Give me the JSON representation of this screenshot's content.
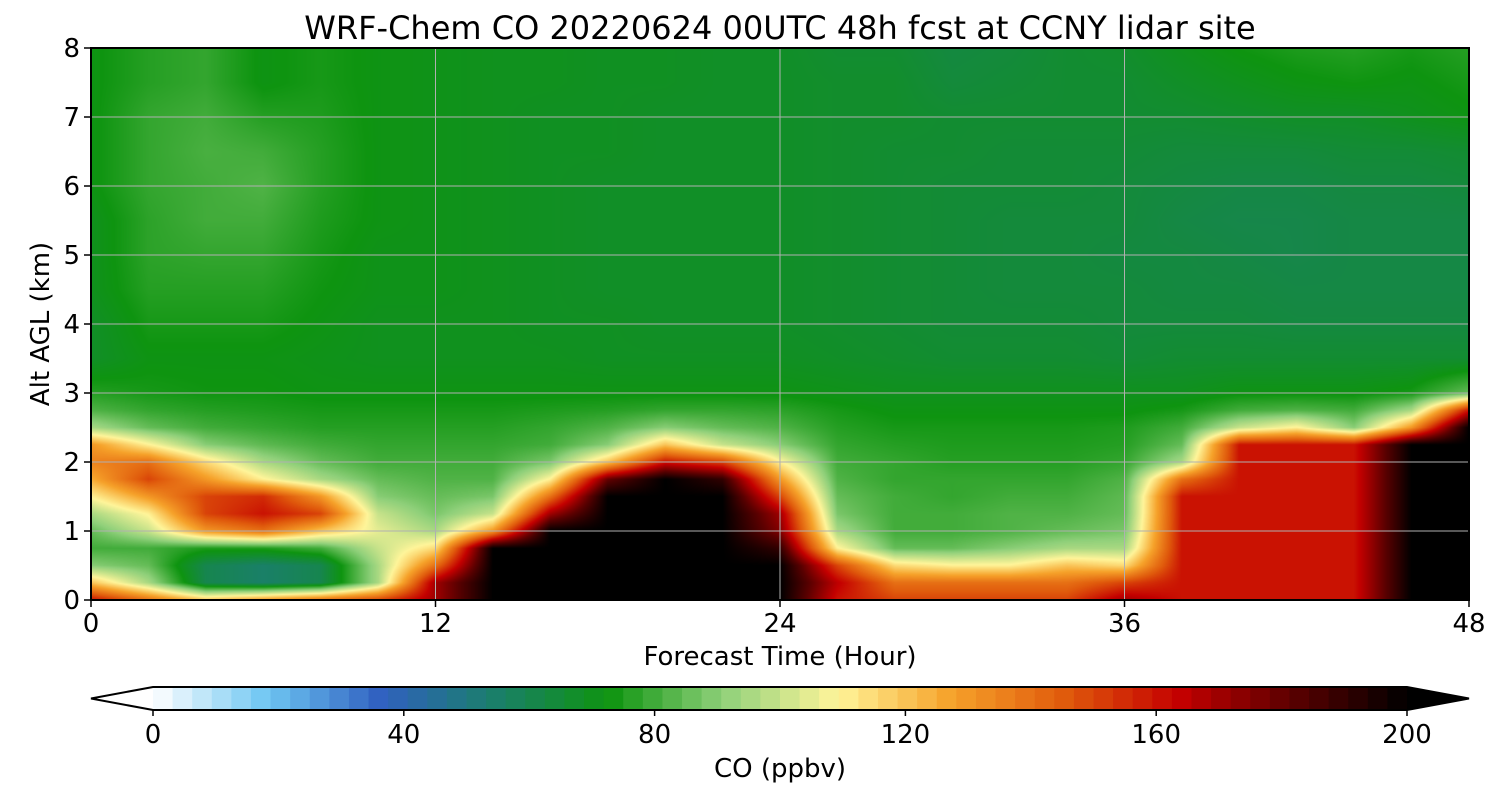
{
  "chart_data": {
    "type": "heatmap",
    "title": "WRF-Chem CO  20220624 00UTC 48h fcst at CCNY lidar site",
    "xlabel": "Forecast Time (Hour)",
    "ylabel": "Alt AGL (km)",
    "xlim": [
      0,
      48
    ],
    "ylim": [
      0,
      8
    ],
    "xticks": [
      0,
      12,
      24,
      36,
      48
    ],
    "yticks": [
      0,
      1,
      2,
      3,
      4,
      5,
      6,
      7,
      8
    ],
    "grid": true,
    "colorbar": {
      "label": "CO  (ppbv)",
      "min": 0,
      "max": 200,
      "ticks": [
        0,
        40,
        80,
        120,
        160,
        200
      ],
      "extend": "both",
      "colors": [
        "#ffffff",
        "#6ec6f2",
        "#3060c0",
        "#1a7f6a",
        "#0e9410",
        "#8fd07a",
        "#fff59a",
        "#f6a22a",
        "#e05a0c",
        "#c40000",
        "#5a0000",
        "#000000"
      ]
    },
    "times": [
      0,
      2,
      4,
      6,
      8,
      10,
      12,
      14,
      16,
      18,
      20,
      22,
      24,
      26,
      28,
      30,
      32,
      34,
      36,
      38,
      40,
      42,
      44,
      46,
      48
    ],
    "heights_km": [
      0,
      0.25,
      0.5,
      0.75,
      1,
      1.25,
      1.5,
      1.75,
      2,
      2.25,
      2.5,
      2.75,
      3,
      3.5,
      4,
      4.5,
      5,
      5.5,
      6,
      6.5,
      7,
      7.5,
      8
    ],
    "values_ppbv": [
      [
        160,
        140,
        120,
        130,
        140,
        150,
        170,
        200,
        200,
        200,
        200,
        200,
        200,
        160,
        150,
        150,
        150,
        150,
        170,
        160,
        160,
        160,
        160,
        200,
        200
      ],
      [
        120,
        95,
        60,
        55,
        60,
        95,
        170,
        200,
        200,
        200,
        200,
        200,
        200,
        165,
        140,
        140,
        140,
        140,
        150,
        160,
        160,
        160,
        160,
        200,
        200
      ],
      [
        90,
        85,
        60,
        55,
        60,
        95,
        140,
        200,
        200,
        200,
        200,
        200,
        200,
        150,
        115,
        110,
        110,
        120,
        115,
        160,
        160,
        160,
        160,
        200,
        200
      ],
      [
        80,
        80,
        75,
        75,
        80,
        100,
        115,
        200,
        200,
        200,
        200,
        200,
        190,
        110,
        85,
        85,
        90,
        95,
        95,
        160,
        160,
        160,
        160,
        200,
        200
      ],
      [
        85,
        100,
        130,
        140,
        120,
        105,
        95,
        130,
        200,
        200,
        200,
        200,
        175,
        95,
        80,
        80,
        82,
        85,
        88,
        160,
        160,
        160,
        160,
        200,
        200
      ],
      [
        95,
        110,
        150,
        160,
        150,
        100,
        88,
        100,
        170,
        200,
        200,
        200,
        170,
        88,
        80,
        80,
        82,
        82,
        85,
        160,
        160,
        160,
        160,
        200,
        200
      ],
      [
        110,
        130,
        150,
        155,
        130,
        90,
        85,
        88,
        140,
        200,
        200,
        200,
        150,
        85,
        80,
        78,
        80,
        80,
        84,
        160,
        160,
        160,
        160,
        200,
        200
      ],
      [
        125,
        150,
        130,
        110,
        95,
        85,
        82,
        82,
        110,
        180,
        200,
        190,
        130,
        82,
        78,
        78,
        78,
        78,
        82,
        140,
        160,
        160,
        160,
        200,
        200
      ],
      [
        135,
        140,
        115,
        95,
        85,
        80,
        80,
        80,
        88,
        120,
        160,
        150,
        110,
        80,
        78,
        76,
        76,
        76,
        78,
        95,
        160,
        160,
        160,
        200,
        200
      ],
      [
        130,
        110,
        90,
        84,
        80,
        78,
        78,
        78,
        80,
        90,
        120,
        100,
        90,
        78,
        76,
        75,
        75,
        75,
        76,
        85,
        160,
        160,
        160,
        200,
        200
      ],
      [
        95,
        85,
        80,
        78,
        76,
        76,
        76,
        76,
        78,
        82,
        90,
        85,
        82,
        76,
        74,
        74,
        74,
        74,
        75,
        80,
        100,
        110,
        90,
        130,
        200
      ],
      [
        82,
        78,
        76,
        75,
        74,
        74,
        74,
        74,
        75,
        76,
        78,
        78,
        77,
        74,
        72,
        72,
        72,
        72,
        72,
        74,
        80,
        82,
        80,
        95,
        160
      ],
      [
        76,
        74,
        73,
        73,
        72,
        72,
        72,
        72,
        72,
        72,
        72,
        72,
        72,
        71,
        70,
        70,
        70,
        70,
        70,
        70,
        72,
        72,
        72,
        74,
        85
      ],
      [
        68,
        72,
        72,
        72,
        71,
        70,
        70,
        70,
        70,
        69,
        69,
        69,
        69,
        68,
        67,
        66,
        66,
        66,
        65,
        66,
        66,
        66,
        66,
        66,
        66
      ],
      [
        68,
        74,
        74,
        74,
        72,
        70,
        70,
        70,
        69,
        69,
        68,
        68,
        68,
        67,
        66,
        65,
        65,
        65,
        64,
        64,
        64,
        63,
        63,
        63,
        63
      ],
      [
        70,
        76,
        76,
        76,
        73,
        71,
        71,
        70,
        69,
        68,
        68,
        68,
        68,
        67,
        66,
        65,
        64,
        64,
        64,
        63,
        63,
        62,
        62,
        62,
        62
      ],
      [
        70,
        77,
        78,
        78,
        74,
        71,
        71,
        70,
        69,
        68,
        68,
        68,
        68,
        67,
        66,
        65,
        64,
        64,
        63,
        63,
        62,
        61,
        62,
        62,
        62
      ],
      [
        70,
        77,
        80,
        80,
        75,
        72,
        71,
        70,
        69,
        68,
        68,
        68,
        68,
        67,
        66,
        65,
        64,
        64,
        64,
        62,
        61,
        61,
        62,
        62,
        62
      ],
      [
        72,
        78,
        80,
        82,
        76,
        72,
        71,
        70,
        69,
        68,
        68,
        68,
        68,
        67,
        66,
        65,
        65,
        65,
        64,
        63,
        62,
        62,
        63,
        63,
        64
      ],
      [
        72,
        78,
        81,
        80,
        76,
        72,
        71,
        70,
        69,
        69,
        68,
        68,
        68,
        67,
        66,
        66,
        65,
        65,
        65,
        64,
        64,
        64,
        65,
        65,
        66
      ],
      [
        72,
        78,
        80,
        76,
        75,
        72,
        71,
        70,
        69,
        69,
        68,
        68,
        68,
        67,
        67,
        66,
        66,
        66,
        66,
        66,
        67,
        68,
        68,
        70,
        72
      ],
      [
        72,
        76,
        78,
        72,
        74,
        72,
        71,
        70,
        70,
        69,
        69,
        68,
        68,
        67,
        67,
        64,
        65,
        66,
        66,
        68,
        70,
        72,
        73,
        72,
        74
      ],
      [
        72,
        76,
        78,
        72,
        74,
        72,
        71,
        70,
        70,
        69,
        69,
        68,
        68,
        66,
        66,
        63,
        64,
        66,
        67,
        70,
        73,
        75,
        76,
        74,
        76
      ]
    ]
  }
}
